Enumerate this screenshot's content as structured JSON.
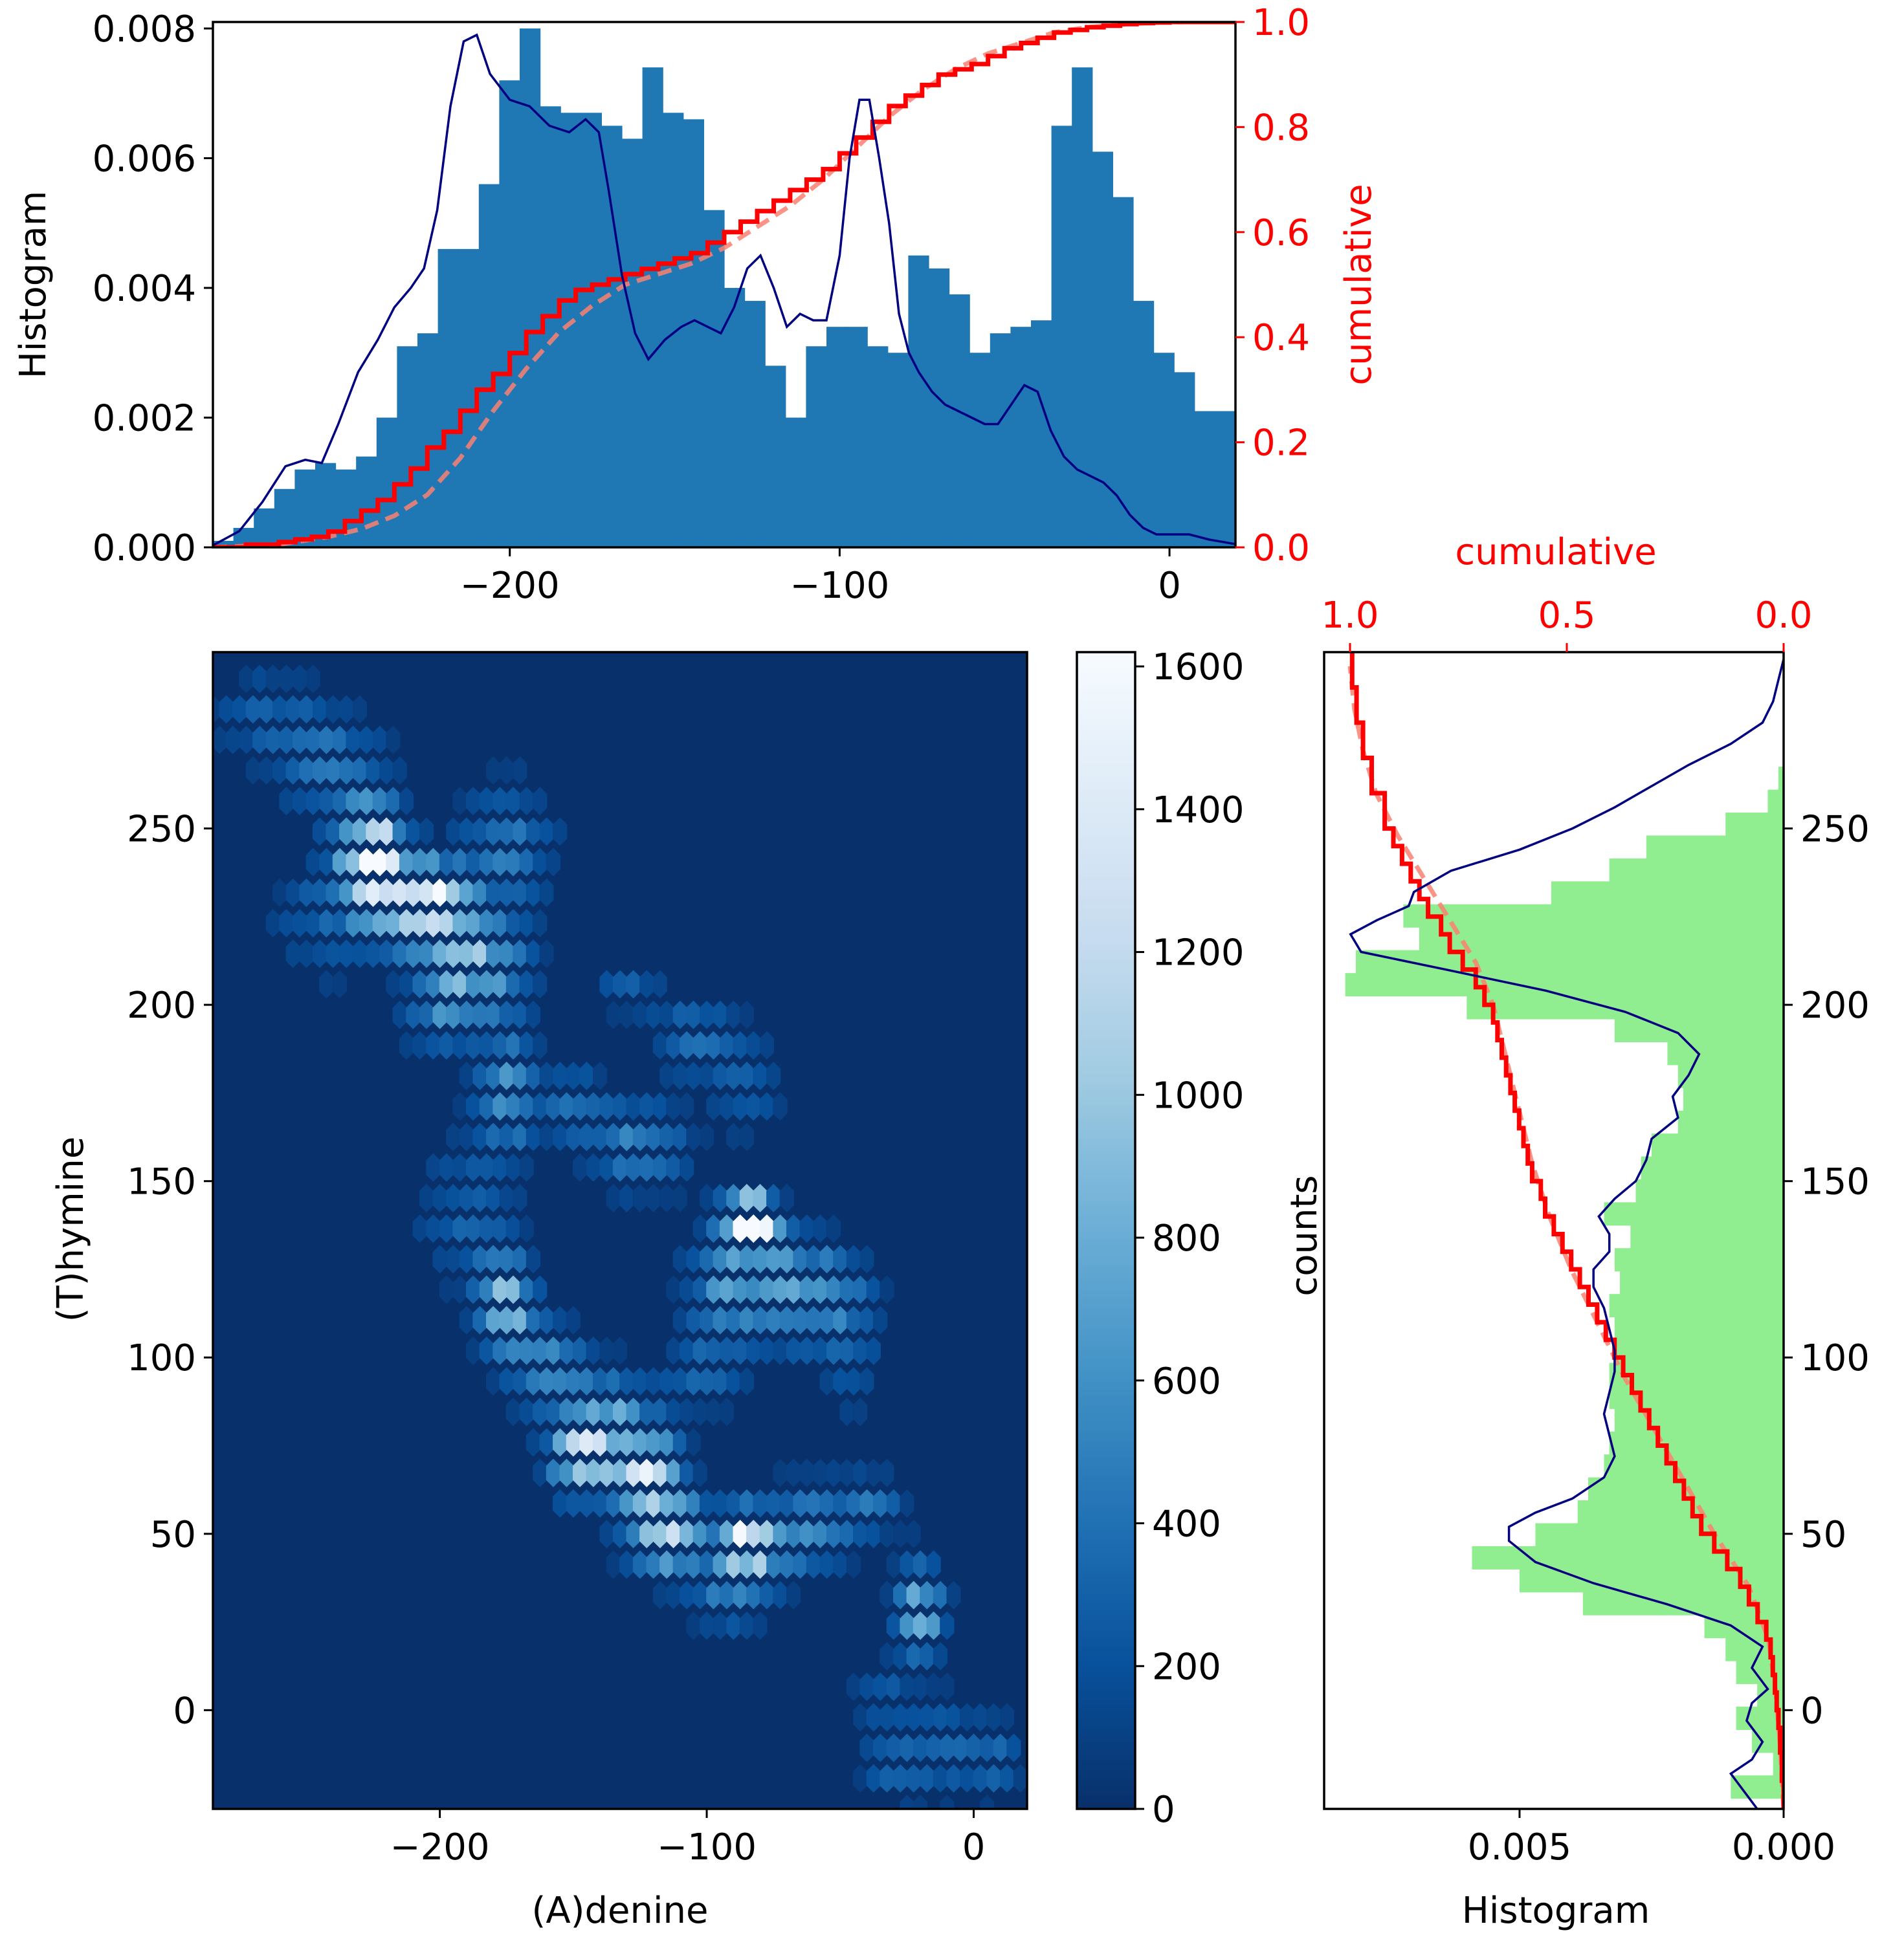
{
  "chart_data": [
    {
      "id": "top",
      "type": "bar",
      "ylabel": "Histogram",
      "ylabel_right": "cumulative",
      "xlim": [
        -290,
        20
      ],
      "ylim": [
        0,
        0.0081
      ],
      "ylim_right": [
        0,
        1.0
      ],
      "x_ticks": [
        -200,
        -100,
        0
      ],
      "x_tick_labels": [
        "−200",
        "−100",
        "0"
      ],
      "y_ticks": [
        0,
        0.002,
        0.004,
        0.006,
        0.008
      ],
      "y_tick_labels": [
        "0.000",
        "0.002",
        "0.004",
        "0.006",
        "0.008"
      ],
      "y_right_ticks": [
        0,
        0.2,
        0.4,
        0.6,
        0.8,
        1.0
      ],
      "y_right_tick_labels": [
        "0.0",
        "0.2",
        "0.4",
        "0.6",
        "0.8",
        "1.0"
      ],
      "bar_color": "#1f77b4",
      "kde_color": "#000080",
      "cum_color": "#ff0000",
      "cum_dashed_color": "#fa8072",
      "bin_start": -290,
      "bin_width": 6.2,
      "values": [
        0.0001,
        0.0003,
        0.0006,
        0.0009,
        0.0012,
        0.0013,
        0.0012,
        0.0014,
        0.002,
        0.0031,
        0.0033,
        0.0046,
        0.0046,
        0.0056,
        0.0072,
        0.008,
        0.0068,
        0.0067,
        0.0067,
        0.0065,
        0.0063,
        0.0074,
        0.0067,
        0.0066,
        0.0052,
        0.004,
        0.0038,
        0.0028,
        0.002,
        0.0031,
        0.0034,
        0.0034,
        0.0031,
        0.003,
        0.0045,
        0.0043,
        0.0039,
        0.003,
        0.0033,
        0.0034,
        0.0035,
        0.0065,
        0.0074,
        0.0061,
        0.0054,
        0.0038,
        0.003,
        0.0027,
        0.0021,
        0.0021,
        0.0022,
        0.0029,
        0.002,
        0.0017,
        0.0014,
        0.0012,
        0.0011,
        0.0009,
        0.0006,
        0.0003,
        0.0003,
        0.0002,
        0.0001
      ],
      "kde": {
        "x": [
          -290,
          -282,
          -275,
          -268,
          -262,
          -257,
          -252,
          -246,
          -240,
          -235,
          -230,
          -226,
          -222,
          -218,
          -214,
          -210,
          -206,
          -200,
          -194,
          -188,
          -182,
          -177,
          -173,
          -170,
          -166,
          -162,
          -158,
          -153,
          -148,
          -144,
          -140,
          -136,
          -132,
          -128,
          -124,
          -120,
          -116,
          -112,
          -108,
          -104,
          -100,
          -97,
          -94,
          -91,
          -88,
          -85,
          -82,
          -79,
          -76,
          -72,
          -68,
          -64,
          -60,
          -56,
          -52,
          -48,
          -44,
          -40,
          -36,
          -32,
          -28,
          -24,
          -20,
          -16,
          -12,
          -8,
          -4,
          0,
          6,
          12,
          20
        ],
        "y": [
          3e-05,
          0.00025,
          0.0007,
          0.00125,
          0.00135,
          0.0013,
          0.0019,
          0.0027,
          0.0032,
          0.0037,
          0.004,
          0.0043,
          0.0052,
          0.0068,
          0.0078,
          0.0079,
          0.0073,
          0.0069,
          0.0068,
          0.0065,
          0.0064,
          0.0066,
          0.0064,
          0.0055,
          0.0042,
          0.0033,
          0.0029,
          0.0032,
          0.0034,
          0.0035,
          0.0034,
          0.0033,
          0.0037,
          0.0043,
          0.0045,
          0.004,
          0.0034,
          0.0036,
          0.0035,
          0.0035,
          0.0045,
          0.006,
          0.0069,
          0.0069,
          0.006,
          0.005,
          0.0036,
          0.003,
          0.0027,
          0.0024,
          0.0022,
          0.0021,
          0.002,
          0.0019,
          0.0019,
          0.0022,
          0.0025,
          0.0024,
          0.0018,
          0.0014,
          0.0012,
          0.0011,
          0.001,
          0.0008,
          0.0005,
          0.0003,
          0.0002,
          0.0002,
          0.0002,
          0.00012,
          5e-05
        ]
      },
      "cumulative_step": {
        "x": [
          -290,
          -280,
          -270,
          -265,
          -260,
          -255,
          -250,
          -245,
          -240,
          -235,
          -230,
          -225,
          -220,
          -215,
          -210,
          -205,
          -200,
          -195,
          -190,
          -185,
          -180,
          -175,
          -170,
          -165,
          -160,
          -155,
          -150,
          -145,
          -140,
          -135,
          -130,
          -125,
          -120,
          -115,
          -110,
          -105,
          -100,
          -95,
          -90,
          -85,
          -80,
          -75,
          -70,
          -65,
          -60,
          -55,
          -50,
          -45,
          -40,
          -35,
          -30,
          -25,
          -20,
          -15,
          -10,
          -5,
          0,
          10,
          20
        ],
        "y": [
          0.0,
          0.005,
          0.01,
          0.015,
          0.02,
          0.03,
          0.05,
          0.07,
          0.09,
          0.12,
          0.15,
          0.19,
          0.22,
          0.26,
          0.3,
          0.33,
          0.37,
          0.41,
          0.44,
          0.47,
          0.49,
          0.5,
          0.51,
          0.52,
          0.53,
          0.54,
          0.55,
          0.56,
          0.58,
          0.6,
          0.62,
          0.64,
          0.66,
          0.68,
          0.7,
          0.72,
          0.75,
          0.78,
          0.81,
          0.84,
          0.86,
          0.88,
          0.9,
          0.91,
          0.92,
          0.935,
          0.95,
          0.96,
          0.97,
          0.98,
          0.985,
          0.99,
          0.993,
          0.996,
          0.998,
          0.999,
          1.0,
          1.0,
          1.0
        ]
      },
      "cumulative_dashed": {
        "x": [
          -290,
          -270,
          -255,
          -245,
          -235,
          -225,
          -215,
          -205,
          -195,
          -185,
          -175,
          -165,
          -155,
          -145,
          -135,
          -125,
          -115,
          -105,
          -95,
          -85,
          -75,
          -65,
          -55,
          -45,
          -35,
          -25,
          -15,
          -5,
          5,
          20
        ],
        "y": [
          0.0,
          0.005,
          0.02,
          0.035,
          0.06,
          0.1,
          0.17,
          0.26,
          0.34,
          0.41,
          0.46,
          0.5,
          0.52,
          0.54,
          0.57,
          0.61,
          0.65,
          0.7,
          0.76,
          0.82,
          0.87,
          0.91,
          0.94,
          0.96,
          0.98,
          0.99,
          0.995,
          0.999,
          1.0,
          1.0
        ]
      }
    },
    {
      "id": "main",
      "type": "heatmap",
      "xlabel": "(A)denine",
      "ylabel": "(T)hymine",
      "xlim": [
        -285,
        20
      ],
      "ylim": [
        -28,
        300
      ],
      "x_ticks": [
        -200,
        -100,
        0
      ],
      "x_tick_labels": [
        "−200",
        "−100",
        "0"
      ],
      "y_ticks": [
        0,
        50,
        100,
        150,
        200,
        250
      ],
      "y_tick_labels": [
        "0",
        "50",
        "100",
        "150",
        "200",
        "250"
      ],
      "background_color": "#08306b",
      "cmap_stops": [
        "#08306b",
        "#08519c",
        "#2171b5",
        "#4292c6",
        "#6baed6",
        "#9ecae1",
        "#c6dbef",
        "#deebf7",
        "#f7fbff"
      ],
      "clusters": [
        {
          "x": -265,
          "y": 282,
          "amp": 250,
          "sx": 15,
          "sy": 9
        },
        {
          "x": -240,
          "y": 268,
          "amp": 380,
          "sx": 14,
          "sy": 10
        },
        {
          "x": -225,
          "y": 242,
          "amp": 1500,
          "sx": 8,
          "sy": 10
        },
        {
          "x": -205,
          "y": 228,
          "amp": 1550,
          "sx": 10,
          "sy": 8
        },
        {
          "x": -185,
          "y": 212,
          "amp": 800,
          "sx": 12,
          "sy": 10
        },
        {
          "x": -240,
          "y": 225,
          "amp": 300,
          "sx": 15,
          "sy": 12
        },
        {
          "x": -175,
          "y": 245,
          "amp": 420,
          "sx": 12,
          "sy": 12
        },
        {
          "x": -200,
          "y": 198,
          "amp": 400,
          "sx": 10,
          "sy": 8
        },
        {
          "x": -175,
          "y": 175,
          "amp": 600,
          "sx": 8,
          "sy": 12
        },
        {
          "x": -190,
          "y": 140,
          "amp": 300,
          "sx": 12,
          "sy": 14
        },
        {
          "x": -150,
          "y": 172,
          "amp": 350,
          "sx": 8,
          "sy": 8
        },
        {
          "x": -125,
          "y": 160,
          "amp": 500,
          "sx": 12,
          "sy": 9
        },
        {
          "x": -130,
          "y": 205,
          "amp": 250,
          "sx": 8,
          "sy": 6
        },
        {
          "x": -105,
          "y": 192,
          "amp": 350,
          "sx": 10,
          "sy": 8
        },
        {
          "x": -85,
          "y": 178,
          "amp": 280,
          "sx": 9,
          "sy": 10
        },
        {
          "x": -85,
          "y": 140,
          "amp": 1450,
          "sx": 6,
          "sy": 5
        },
        {
          "x": -78,
          "y": 135,
          "amp": 900,
          "sx": 6,
          "sy": 5
        },
        {
          "x": -90,
          "y": 120,
          "amp": 600,
          "sx": 12,
          "sy": 12
        },
        {
          "x": -60,
          "y": 118,
          "amp": 650,
          "sx": 13,
          "sy": 10
        },
        {
          "x": -45,
          "y": 100,
          "amp": 220,
          "sx": 8,
          "sy": 12
        },
        {
          "x": -100,
          "y": 95,
          "amp": 280,
          "sx": 10,
          "sy": 8
        },
        {
          "x": -175,
          "y": 115,
          "amp": 900,
          "sx": 7,
          "sy": 9
        },
        {
          "x": -160,
          "y": 98,
          "amp": 520,
          "sx": 10,
          "sy": 9
        },
        {
          "x": -135,
          "y": 85,
          "amp": 550,
          "sx": 12,
          "sy": 8
        },
        {
          "x": -145,
          "y": 72,
          "amp": 1150,
          "sx": 9,
          "sy": 8
        },
        {
          "x": -122,
          "y": 68,
          "amp": 1100,
          "sx": 8,
          "sy": 7
        },
        {
          "x": -115,
          "y": 50,
          "amp": 1050,
          "sx": 10,
          "sy": 8
        },
        {
          "x": -85,
          "y": 48,
          "amp": 1350,
          "sx": 6,
          "sy": 6
        },
        {
          "x": -90,
          "y": 35,
          "amp": 500,
          "sx": 10,
          "sy": 8
        },
        {
          "x": -65,
          "y": 50,
          "amp": 500,
          "sx": 12,
          "sy": 9
        },
        {
          "x": -40,
          "y": 58,
          "amp": 380,
          "sx": 10,
          "sy": 6
        },
        {
          "x": -20,
          "y": 28,
          "amp": 850,
          "sx": 6,
          "sy": 9
        },
        {
          "x": -35,
          "y": 5,
          "amp": 250,
          "sx": 8,
          "sy": 6
        },
        {
          "x": -10,
          "y": -10,
          "amp": 250,
          "sx": 10,
          "sy": 10
        },
        {
          "x": -28,
          "y": -15,
          "amp": 300,
          "sx": 10,
          "sy": 8
        },
        {
          "x": 8,
          "y": -15,
          "amp": 300,
          "sx": 7,
          "sy": 8
        }
      ]
    },
    {
      "id": "colorbar",
      "type": "colorbar",
      "range": [
        0,
        1620
      ],
      "ticks": [
        0,
        200,
        400,
        600,
        800,
        1000,
        1200,
        1400,
        1600
      ],
      "tick_labels": [
        "0",
        "200",
        "400",
        "600",
        "800",
        "1000",
        "1200",
        "1400",
        "1600"
      ]
    },
    {
      "id": "right",
      "type": "bar",
      "orientation": "horizontal",
      "xlabel": "Histogram",
      "ylabel": "counts",
      "xlabel_top": "cumulative",
      "xlim_inverted": [
        0.0087,
        0
      ],
      "ylim": [
        -28,
        300
      ],
      "x_ticks": [
        0.005,
        0.0
      ],
      "x_tick_labels": [
        "0.005",
        "0.000"
      ],
      "x_top_ticks": [
        1.0,
        0.5,
        0.0
      ],
      "x_top_tick_labels": [
        "1.0",
        "0.5",
        "0.0"
      ],
      "y_ticks": [
        0,
        50,
        100,
        150,
        200,
        250
      ],
      "y_tick_labels": [
        "0",
        "50",
        "100",
        "150",
        "200",
        "250"
      ],
      "bar_color": "#90ee90",
      "kde_color": "#000080",
      "cum_color": "#ff0000",
      "cum_dashed_color": "#fa8072",
      "bin_start": -25,
      "bin_width": 6.5,
      "values": [
        0.001,
        0.0002,
        0.0006,
        0.0009,
        0.0005,
        0.0009,
        0.0011,
        0.0015,
        0.0038,
        0.005,
        0.0059,
        0.0047,
        0.0039,
        0.0037,
        0.0034,
        0.0033,
        0.0032,
        0.0033,
        0.0033,
        0.0032,
        0.0032,
        0.0033,
        0.0031,
        0.0032,
        0.0029,
        0.0034,
        0.0028,
        0.0027,
        0.0025,
        0.002,
        0.0019,
        0.002,
        0.0022,
        0.0032,
        0.006,
        0.0083,
        0.0081,
        0.0069,
        0.0072,
        0.0044,
        0.0033,
        0.0026,
        0.0011,
        0.0003,
        0.0001
      ],
      "kde": {
        "y": [
          -28,
          -22,
          -18,
          -14,
          -9,
          -3,
          2,
          6,
          12,
          18,
          24,
          30,
          36,
          42,
          48,
          52,
          56,
          60,
          66,
          72,
          78,
          84,
          90,
          96,
          102,
          108,
          114,
          120,
          125,
          130,
          135,
          140,
          145,
          150,
          156,
          162,
          168,
          174,
          180,
          186,
          192,
          198,
          204,
          210,
          215,
          220,
          224,
          228,
          232,
          238,
          244,
          250,
          256,
          262,
          268,
          274,
          280,
          286,
          292,
          298
        ],
        "x": [
          0.0005,
          0.0008,
          0.001,
          0.0006,
          0.0004,
          0.0007,
          0.0006,
          0.0003,
          0.0006,
          0.0004,
          0.001,
          0.0022,
          0.0036,
          0.0047,
          0.0052,
          0.0052,
          0.0047,
          0.004,
          0.0034,
          0.0032,
          0.0033,
          0.0034,
          0.0033,
          0.0032,
          0.0032,
          0.0033,
          0.0034,
          0.0036,
          0.0036,
          0.0033,
          0.0033,
          0.0035,
          0.0032,
          0.0028,
          0.0026,
          0.0025,
          0.002,
          0.0021,
          0.0018,
          0.0016,
          0.002,
          0.003,
          0.0045,
          0.0064,
          0.008,
          0.0082,
          0.0077,
          0.0071,
          0.007,
          0.0063,
          0.005,
          0.004,
          0.0032,
          0.0025,
          0.0018,
          0.001,
          0.0004,
          0.0002,
          0.0001,
          0.0
        ]
      },
      "cumulative_step": {
        "y": [
          -28,
          -20,
          -12,
          -5,
          0,
          5,
          10,
          15,
          20,
          25,
          30,
          35,
          40,
          45,
          50,
          55,
          60,
          65,
          70,
          75,
          80,
          85,
          90,
          95,
          100,
          105,
          110,
          115,
          120,
          125,
          130,
          135,
          140,
          145,
          150,
          155,
          160,
          165,
          170,
          175,
          180,
          185,
          190,
          195,
          200,
          205,
          210,
          215,
          220,
          225,
          230,
          235,
          240,
          245,
          250,
          260,
          270,
          280,
          290,
          300
        ],
        "x": [
          0.0,
          0.004,
          0.008,
          0.012,
          0.016,
          0.02,
          0.025,
          0.03,
          0.04,
          0.06,
          0.08,
          0.1,
          0.13,
          0.16,
          0.19,
          0.21,
          0.23,
          0.25,
          0.27,
          0.29,
          0.31,
          0.33,
          0.35,
          0.37,
          0.39,
          0.41,
          0.43,
          0.45,
          0.47,
          0.49,
          0.51,
          0.53,
          0.55,
          0.56,
          0.58,
          0.59,
          0.6,
          0.61,
          0.62,
          0.63,
          0.64,
          0.65,
          0.66,
          0.67,
          0.69,
          0.71,
          0.74,
          0.77,
          0.79,
          0.82,
          0.84,
          0.86,
          0.88,
          0.9,
          0.92,
          0.95,
          0.97,
          0.985,
          0.995,
          1.0
        ]
      },
      "cumulative_dashed": {
        "y": [
          -28,
          -10,
          5,
          20,
          35,
          50,
          65,
          80,
          95,
          110,
          125,
          140,
          155,
          170,
          185,
          200,
          212,
          224,
          236,
          248,
          260,
          272,
          284,
          296
        ],
        "x": [
          0.0,
          0.008,
          0.018,
          0.035,
          0.08,
          0.16,
          0.23,
          0.3,
          0.37,
          0.43,
          0.49,
          0.54,
          0.58,
          0.61,
          0.64,
          0.67,
          0.71,
          0.77,
          0.83,
          0.89,
          0.94,
          0.97,
          0.99,
          1.0
        ]
      }
    }
  ]
}
